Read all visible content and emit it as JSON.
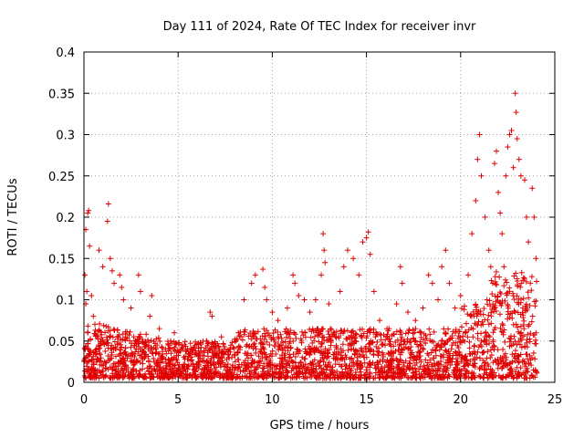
{
  "chart_data": {
    "type": "scatter",
    "title": "Day 111 of 2024, Rate Of TEC Index for receiver invr",
    "xlabel": "GPS time / hours",
    "ylabel": "ROTI / TECUs",
    "xlim": [
      0,
      25
    ],
    "ylim": [
      0,
      0.4
    ],
    "x_ticks": [
      0,
      5,
      10,
      15,
      20,
      25
    ],
    "x_tick_labels": [
      "0",
      "5",
      "10",
      "15",
      "20",
      "25"
    ],
    "y_ticks": [
      0,
      0.05,
      0.1,
      0.15,
      0.2,
      0.25,
      0.3,
      0.35,
      0.4
    ],
    "y_tick_labels": [
      "0",
      "0.05",
      "0.1",
      "0.15",
      "0.2",
      "0.25",
      "0.3",
      "0.35",
      "0.4"
    ],
    "grid": true,
    "marker": "plus",
    "color": "#e00000",
    "series": [
      {
        "name": "ROTI",
        "points": [
          [
            0.1,
            0.185
          ],
          [
            0.2,
            0.205
          ],
          [
            0.25,
            0.208
          ],
          [
            0.3,
            0.165
          ],
          [
            0.05,
            0.13
          ],
          [
            0.15,
            0.11
          ],
          [
            0.1,
            0.095
          ],
          [
            0.4,
            0.105
          ],
          [
            0.5,
            0.08
          ],
          [
            0.2,
            0.06
          ],
          [
            1.3,
            0.216
          ],
          [
            1.25,
            0.195
          ],
          [
            0.8,
            0.16
          ],
          [
            1.0,
            0.14
          ],
          [
            1.4,
            0.15
          ],
          [
            1.5,
            0.135
          ],
          [
            1.6,
            0.12
          ],
          [
            1.9,
            0.13
          ],
          [
            2.0,
            0.115
          ],
          [
            2.1,
            0.1
          ],
          [
            2.9,
            0.13
          ],
          [
            3.0,
            0.11
          ],
          [
            3.6,
            0.105
          ],
          [
            3.5,
            0.08
          ],
          [
            2.5,
            0.09
          ],
          [
            4.0,
            0.065
          ],
          [
            4.6,
            0.05
          ],
          [
            4.8,
            0.06
          ],
          [
            5.2,
            0.045
          ],
          [
            5.8,
            0.04
          ],
          [
            6.5,
            0.05
          ],
          [
            6.7,
            0.085
          ],
          [
            6.8,
            0.08
          ],
          [
            7.3,
            0.055
          ],
          [
            7.8,
            0.045
          ],
          [
            8.2,
            0.06
          ],
          [
            8.5,
            0.1
          ],
          [
            8.9,
            0.12
          ],
          [
            9.1,
            0.13
          ],
          [
            9.5,
            0.137
          ],
          [
            9.6,
            0.115
          ],
          [
            9.7,
            0.1
          ],
          [
            10.0,
            0.085
          ],
          [
            10.3,
            0.075
          ],
          [
            10.8,
            0.09
          ],
          [
            11.1,
            0.13
          ],
          [
            11.2,
            0.12
          ],
          [
            11.4,
            0.105
          ],
          [
            11.7,
            0.1
          ],
          [
            12.0,
            0.085
          ],
          [
            12.3,
            0.1
          ],
          [
            12.6,
            0.13
          ],
          [
            12.7,
            0.18
          ],
          [
            12.75,
            0.16
          ],
          [
            12.8,
            0.145
          ],
          [
            13.0,
            0.095
          ],
          [
            13.3,
            0.06
          ],
          [
            13.6,
            0.11
          ],
          [
            13.8,
            0.14
          ],
          [
            14.0,
            0.16
          ],
          [
            14.3,
            0.15
          ],
          [
            14.6,
            0.13
          ],
          [
            14.8,
            0.17
          ],
          [
            15.0,
            0.175
          ],
          [
            15.1,
            0.182
          ],
          [
            15.2,
            0.155
          ],
          [
            15.4,
            0.11
          ],
          [
            15.7,
            0.075
          ],
          [
            16.2,
            0.065
          ],
          [
            16.6,
            0.095
          ],
          [
            16.8,
            0.14
          ],
          [
            16.9,
            0.12
          ],
          [
            17.2,
            0.085
          ],
          [
            17.6,
            0.075
          ],
          [
            18.0,
            0.09
          ],
          [
            18.3,
            0.13
          ],
          [
            18.5,
            0.12
          ],
          [
            18.8,
            0.1
          ],
          [
            19.0,
            0.14
          ],
          [
            19.2,
            0.16
          ],
          [
            19.4,
            0.12
          ],
          [
            19.7,
            0.09
          ],
          [
            20.0,
            0.105
          ],
          [
            20.4,
            0.13
          ],
          [
            20.6,
            0.18
          ],
          [
            20.8,
            0.22
          ],
          [
            20.9,
            0.27
          ],
          [
            21.0,
            0.3
          ],
          [
            21.1,
            0.25
          ],
          [
            21.3,
            0.2
          ],
          [
            21.5,
            0.16
          ],
          [
            21.6,
            0.14
          ],
          [
            21.8,
            0.265
          ],
          [
            21.9,
            0.28
          ],
          [
            22.0,
            0.23
          ],
          [
            22.1,
            0.205
          ],
          [
            22.2,
            0.18
          ],
          [
            22.4,
            0.25
          ],
          [
            22.5,
            0.285
          ],
          [
            22.6,
            0.3
          ],
          [
            22.7,
            0.305
          ],
          [
            22.8,
            0.26
          ],
          [
            22.9,
            0.35
          ],
          [
            22.95,
            0.327
          ],
          [
            23.0,
            0.295
          ],
          [
            23.1,
            0.27
          ],
          [
            23.2,
            0.25
          ],
          [
            23.4,
            0.245
          ],
          [
            23.5,
            0.2
          ],
          [
            23.6,
            0.17
          ],
          [
            23.8,
            0.235
          ],
          [
            23.9,
            0.2
          ],
          [
            24.0,
            0.15
          ],
          [
            23.7,
            0.12
          ],
          [
            22.3,
            0.14
          ],
          [
            21.7,
            0.12
          ],
          [
            21.4,
            0.1
          ],
          [
            22.6,
            0.11
          ],
          [
            23.3,
            0.09
          ],
          [
            24.0,
            0.06
          ]
        ]
      }
    ]
  }
}
